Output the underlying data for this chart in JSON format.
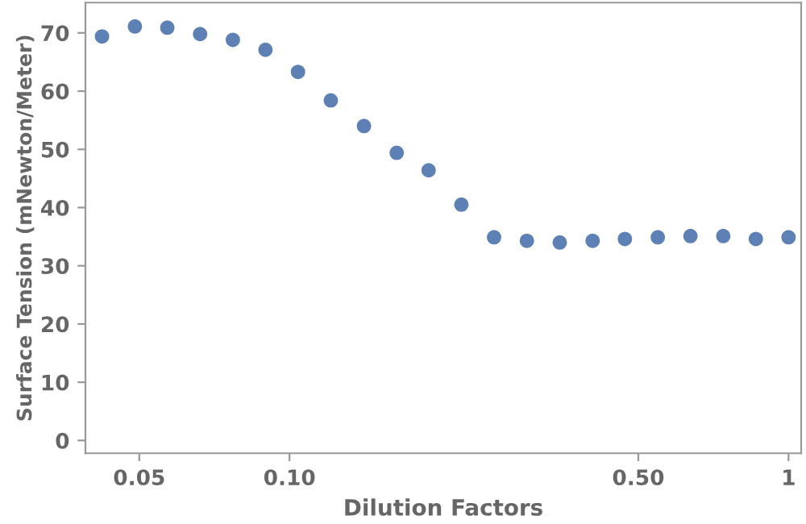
{
  "chart_data": {
    "type": "scatter",
    "xlabel": "Dilution Factors",
    "ylabel": "Surface Tension (mNewton/Meter)",
    "x": [
      0.0421,
      0.049,
      0.0569,
      0.0662,
      0.077,
      0.0895,
      0.104,
      0.121,
      0.141,
      0.164,
      0.19,
      0.221,
      0.257,
      0.299,
      0.348,
      0.405,
      0.47,
      0.547,
      0.636,
      0.74,
      0.86,
      1
    ],
    "series": [
      {
        "color": "#5e81b5",
        "values": [
          69.4,
          71.1,
          70.9,
          69.8,
          68.8,
          67.1,
          63.3,
          58.4,
          54.0,
          49.4,
          46.4,
          40.5,
          34.9,
          34.3,
          34.0,
          34.3,
          34.6,
          34.9,
          35.1,
          35.1,
          34.6,
          34.9
        ]
      }
    ],
    "log": "x",
    "marker": "circle",
    "grid": false,
    "legend": false,
    "xlim": [
      0.039,
      1.06
    ],
    "xticks": [
      0.05,
      {
        "value": 0.1,
        "label": "0.10"
      },
      {
        "value": 0.5,
        "label": "0.50"
      },
      1
    ],
    "ylim": [
      -2.2,
      75.2
    ],
    "yticks": [
      0,
      10,
      20,
      30,
      40,
      50,
      60,
      70
    ]
  }
}
